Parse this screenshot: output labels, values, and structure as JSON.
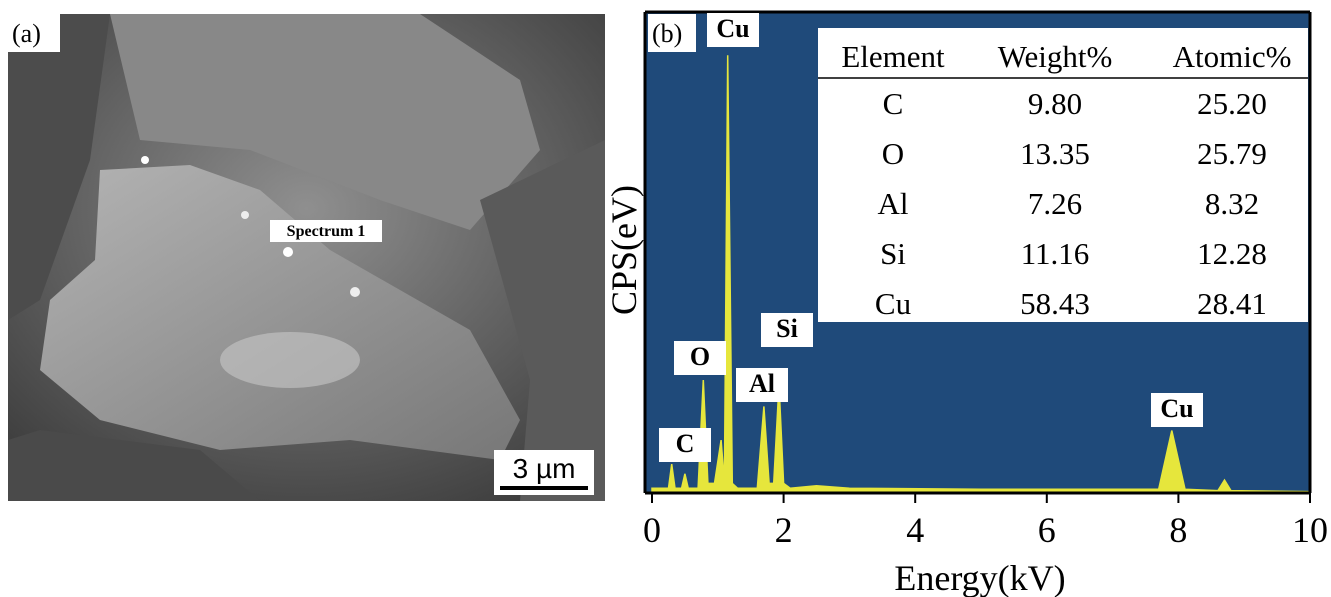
{
  "panel_a": {
    "label": "(a)",
    "spectrum_label": "Spectrum 1",
    "scale_bar": "3 µm"
  },
  "chart_data": {
    "type": "area",
    "panel_label": "(b)",
    "x_label": "Energy(kV)",
    "y_label": "CPS(eV)",
    "xlim": [
      0,
      10
    ],
    "xticks": [
      0,
      2,
      4,
      6,
      8,
      10
    ],
    "ylim": [
      0,
      100
    ],
    "background": "#1f4a7a",
    "axis_color": "#000000",
    "x": [
      0,
      0.25,
      0.3,
      0.35,
      0.45,
      0.5,
      0.55,
      0.7,
      0.78,
      0.85,
      0.95,
      1.05,
      1.1,
      1.15,
      1.22,
      1.3,
      1.6,
      1.7,
      1.78,
      1.85,
      1.93,
      2.0,
      2.1,
      2.5,
      3,
      5,
      7.7,
      7.9,
      8.1,
      8.6,
      8.7,
      8.8,
      10
    ],
    "series": [
      {
        "name": "Spectrum 1",
        "color": "#e6e63c",
        "values": [
          1,
          1,
          6,
          1,
          1,
          4,
          1,
          1,
          23.5,
          2,
          2,
          11,
          2,
          91,
          2,
          1,
          1,
          18,
          2,
          2,
          22.5,
          2,
          1,
          1.5,
          1,
          0.8,
          0.8,
          13,
          0.8,
          0.5,
          2.7,
          0.5,
          0.3
        ]
      }
    ],
    "annotations": [
      "Cu",
      "O",
      "C",
      "Si",
      "Al",
      "Cu"
    ],
    "table": {
      "header": [
        "Element",
        "Weight%",
        "Atomic%"
      ],
      "rows": [
        [
          "C",
          "9.80",
          "25.20"
        ],
        [
          "O",
          "13.35",
          "25.79"
        ],
        [
          "Al",
          "7.26",
          "8.32"
        ],
        [
          "Si",
          "11.16",
          "12.28"
        ],
        [
          "Cu",
          "58.43",
          "28.41"
        ]
      ]
    }
  }
}
